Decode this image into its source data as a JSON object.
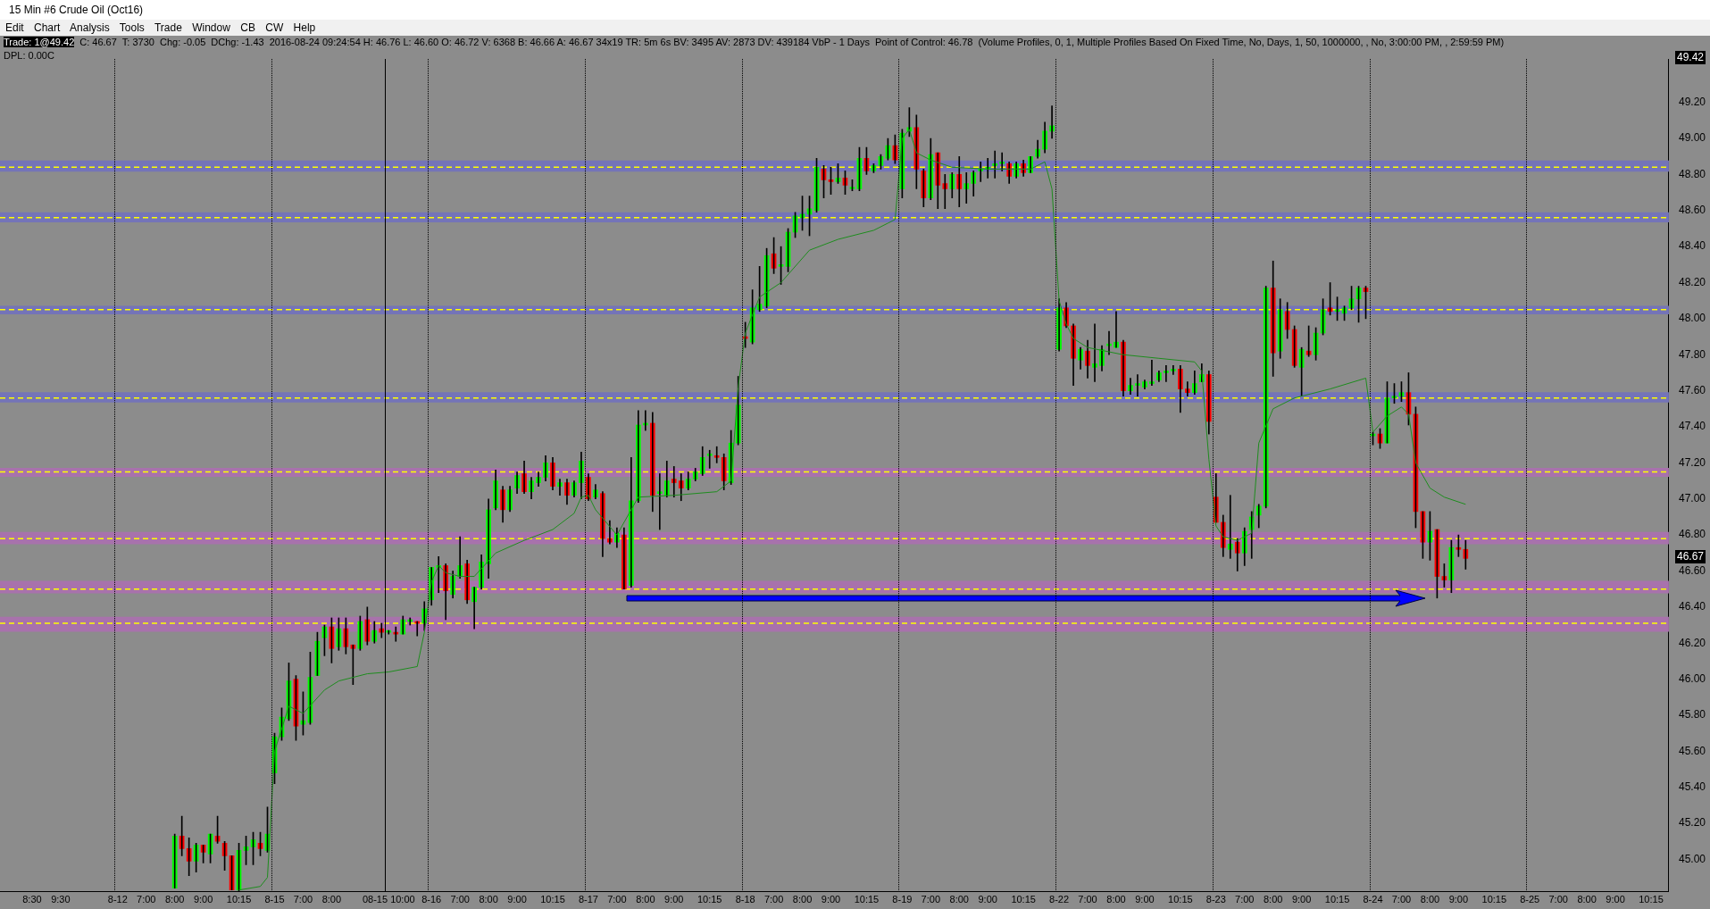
{
  "chart_data": {
    "type": "candlestick",
    "title": "15 Min #6 Crude Oil (Oct16)",
    "annotations": [
      "Edit Chart Analysis Tools Trade Window CB CW Help",
      "Trade: 1@49.42",
      "C: 46.67",
      "T: 3730",
      "Chg: -0.05",
      "DChg: -1.43",
      "2016-08-24 09:24:54 H: 46.76 L: 46.60 O: 46.72 V: 6368 B: 46.66 A: 46.67 34x19 TR: 5m 6s BV: 3495 AV: 2873 DV: 439184 VbP - 1 Days",
      "Point of Control: 46.78",
      "(Volume Profiles, 0, 1, Multiple Profiles Based On Fixed Time, No, Days, 1, 50, 1000000, , No, 3:00:00 PM, , 2:59:59 PM)",
      "DPL: 0.00C",
      "49.42",
      "46.67"
    ],
    "categories": [
      null,
      null,
      null,
      null,
      "8:30",
      null,
      null,
      null,
      "9:30",
      null,
      null,
      null,
      null,
      null,
      null,
      null,
      "8-12",
      null,
      null,
      null,
      "7:00",
      null,
      null,
      null,
      "8:00",
      null,
      null,
      null,
      "9:00",
      null,
      null,
      null,
      null,
      "10:15",
      null,
      null,
      null,
      null,
      "8-15",
      null,
      null,
      null,
      "7:00",
      null,
      null,
      null,
      "8:00",
      null,
      null,
      null,
      null,
      null,
      null,
      null,
      "08-15 10:00",
      null,
      null,
      null,
      null,
      null,
      "8-16",
      null,
      null,
      null,
      "7:00",
      null,
      null,
      null,
      "8:00",
      null,
      null,
      null,
      "9:00",
      null,
      null,
      null,
      null,
      "10:15",
      null,
      null,
      null,
      null,
      "8-17",
      null,
      null,
      null,
      "7:00",
      null,
      null,
      null,
      "8:00",
      null,
      null,
      null,
      "9:00",
      null,
      null,
      null,
      null,
      "10:15",
      null,
      null,
      null,
      null,
      "8-18",
      null,
      null,
      null,
      "7:00",
      null,
      null,
      null,
      "8:00",
      null,
      null,
      null,
      "9:00",
      null,
      null,
      null,
      null,
      "10:15",
      null,
      null,
      null,
      null,
      "8-19",
      null,
      null,
      null,
      "7:00",
      null,
      null,
      null,
      "8:00",
      null,
      null,
      null,
      "9:00",
      null,
      null,
      null,
      null,
      "10:15",
      null,
      null,
      null,
      null,
      "8-22",
      null,
      null,
      null,
      "7:00",
      null,
      null,
      null,
      "8:00",
      null,
      null,
      null,
      "9:00",
      null,
      null,
      null,
      null,
      "10:15",
      null,
      null,
      null,
      null,
      "8-23",
      null,
      null,
      null,
      "7:00",
      null,
      null,
      null,
      "8:00",
      null,
      null,
      null,
      "9:00",
      null,
      null,
      null,
      null,
      "10:15",
      null,
      null,
      null,
      null,
      "8-24",
      null,
      null,
      null,
      "7:00",
      null,
      null,
      null,
      "8:00",
      null,
      null,
      null,
      "9:00",
      null,
      null,
      null,
      null,
      "10:15",
      null,
      null,
      null,
      null,
      "8-25",
      null,
      null,
      null,
      "7:00",
      null,
      null,
      null,
      "8:00",
      null,
      null,
      null,
      "9:00",
      null,
      null,
      null,
      null,
      "10:15",
      null,
      null
    ],
    "series": [
      {
        "type": "candlestick",
        "ohlc": [
          null,
          null,
          null,
          null,
          null,
          null,
          null,
          null,
          null,
          null,
          null,
          null,
          null,
          null,
          null,
          null,
          null,
          null,
          null,
          null,
          null,
          null,
          null,
          null,
          [
            44.84,
            45.14,
            44.84,
            45.13
          ],
          [
            45.13,
            45.24,
            45.02,
            45.06
          ],
          [
            45.06,
            45.12,
            44.91,
            44.99
          ],
          [
            44.99,
            45.09,
            44.93,
            45.08
          ],
          [
            45.08,
            45.08,
            44.98,
            45.04
          ],
          [
            45.03,
            45.14,
            44.98,
            45.14
          ],
          [
            45.13,
            45.24,
            45.09,
            45.1
          ],
          [
            45.09,
            45.1,
            44.94,
            45.02
          ],
          [
            45.02,
            45.02,
            44.83,
            44.83
          ],
          [
            44.83,
            45.09,
            44.82,
            45.05
          ],
          [
            45.05,
            45.13,
            44.97,
            45.07
          ],
          [
            45.07,
            45.15,
            44.97,
            45.11
          ],
          [
            45.09,
            45.15,
            45.02,
            45.06
          ],
          [
            45.05,
            45.29,
            45.04,
            45.14
          ],
          [
            45.48,
            45.7,
            45.42,
            45.68
          ],
          [
            45.68,
            45.84,
            45.66,
            45.79
          ],
          [
            45.78,
            46.09,
            45.77,
            45.99
          ],
          [
            46.0,
            46.02,
            45.66,
            45.74
          ],
          [
            45.75,
            45.93,
            45.69,
            45.77
          ],
          [
            45.76,
            46.15,
            45.75,
            46.01
          ],
          [
            46.02,
            46.26,
            46.02,
            46.21
          ],
          [
            46.23,
            46.3,
            46.13,
            46.29
          ],
          [
            46.29,
            46.34,
            46.09,
            46.17
          ],
          [
            46.18,
            46.34,
            46.16,
            46.28
          ],
          [
            46.28,
            46.34,
            46.14,
            46.18
          ],
          [
            46.19,
            46.19,
            45.97,
            46.17
          ],
          [
            46.17,
            46.35,
            46.16,
            46.32
          ],
          [
            46.33,
            46.4,
            46.19,
            46.21
          ],
          [
            46.21,
            46.32,
            46.2,
            46.27
          ],
          [
            46.28,
            46.31,
            46.23,
            46.26
          ],
          [
            46.26,
            46.27,
            46.25,
            46.26
          ],
          [
            46.26,
            46.29,
            46.21,
            46.25
          ],
          [
            46.25,
            46.35,
            46.25,
            46.33
          ],
          [
            46.32,
            46.34,
            46.3,
            46.32
          ],
          [
            46.32,
            46.32,
            46.24,
            46.31
          ],
          [
            46.31,
            46.43,
            46.27,
            46.39
          ],
          [
            46.44,
            46.62,
            46.41,
            46.62
          ],
          [
            46.62,
            46.68,
            46.48,
            46.63
          ],
          [
            46.63,
            46.64,
            46.33,
            46.49
          ],
          [
            46.47,
            46.6,
            46.45,
            46.57
          ],
          [
            46.57,
            46.79,
            46.56,
            46.63
          ],
          [
            46.64,
            46.66,
            46.42,
            46.44
          ],
          [
            46.43,
            46.51,
            46.28,
            46.51
          ],
          [
            46.51,
            46.69,
            46.5,
            46.65
          ],
          [
            46.64,
            47.0,
            46.56,
            46.94
          ],
          [
            46.95,
            47.16,
            46.94,
            47.1
          ],
          [
            47.05,
            47.07,
            46.87,
            46.94
          ],
          [
            46.94,
            47.07,
            46.93,
            47.05
          ],
          [
            47.06,
            47.15,
            47.03,
            47.13
          ],
          [
            47.14,
            47.21,
            47.03,
            47.04
          ],
          [
            47.04,
            47.12,
            47.0,
            47.1
          ],
          [
            47.09,
            47.15,
            47.07,
            47.12
          ],
          [
            47.12,
            47.24,
            47.1,
            47.2
          ],
          [
            47.2,
            47.23,
            47.05,
            47.07
          ],
          [
            47.07,
            47.11,
            47.02,
            47.09
          ],
          [
            47.09,
            47.11,
            46.97,
            47.02
          ],
          [
            47.02,
            47.1,
            47.01,
            47.09
          ],
          [
            47.09,
            47.26,
            47.0,
            47.21
          ],
          [
            47.12,
            47.14,
            46.99,
            47.0
          ],
          [
            47.01,
            47.08,
            47.0,
            47.05
          ],
          [
            47.03,
            47.04,
            46.68,
            46.78
          ],
          [
            46.78,
            46.88,
            46.75,
            46.76
          ],
          [
            46.76,
            46.84,
            46.73,
            46.81
          ],
          [
            46.8,
            46.84,
            46.5,
            46.5
          ],
          [
            46.52,
            47.23,
            46.51,
            46.99
          ],
          [
            46.99,
            47.49,
            46.98,
            47.41
          ],
          [
            47.41,
            47.49,
            47.38,
            47.41
          ],
          [
            47.42,
            47.48,
            46.93,
            47.02
          ],
          [
            47.03,
            47.14,
            46.83,
            47.03
          ],
          [
            47.02,
            47.21,
            47.01,
            47.1
          ],
          [
            47.11,
            47.18,
            47.01,
            47.09
          ],
          [
            47.1,
            47.14,
            46.99,
            47.06
          ],
          [
            47.06,
            47.15,
            47.05,
            47.11
          ],
          [
            47.11,
            47.17,
            47.1,
            47.15
          ],
          [
            47.14,
            47.29,
            47.13,
            47.23
          ],
          [
            47.24,
            47.27,
            47.17,
            47.24
          ],
          [
            47.24,
            47.29,
            47.2,
            47.23
          ],
          [
            47.23,
            47.25,
            47.05,
            47.1
          ],
          [
            47.09,
            47.38,
            47.08,
            47.31
          ],
          [
            47.31,
            47.68,
            47.3,
            47.52
          ],
          [
            47.89,
            47.98,
            47.84,
            47.89
          ],
          [
            47.87,
            48.16,
            47.86,
            48.06
          ],
          [
            48.05,
            48.29,
            48.04,
            48.08
          ],
          [
            48.07,
            48.39,
            48.06,
            48.35
          ],
          [
            48.36,
            48.45,
            48.25,
            48.28
          ],
          [
            48.29,
            48.4,
            48.19,
            48.29
          ],
          [
            48.29,
            48.5,
            48.26,
            48.48
          ],
          [
            48.48,
            48.59,
            48.45,
            48.57
          ],
          [
            48.56,
            48.68,
            48.49,
            48.58
          ],
          [
            48.58,
            48.68,
            48.46,
            48.61
          ],
          [
            48.6,
            48.89,
            48.59,
            48.84
          ],
          [
            48.83,
            48.85,
            48.67,
            48.77
          ],
          [
            48.77,
            48.84,
            48.69,
            48.76
          ],
          [
            48.76,
            48.86,
            48.75,
            48.78
          ],
          [
            48.78,
            48.82,
            48.69,
            48.74
          ],
          [
            48.72,
            48.77,
            48.71,
            48.72
          ],
          [
            48.72,
            48.95,
            48.71,
            48.89
          ],
          [
            48.89,
            48.95,
            48.8,
            48.82
          ],
          [
            48.82,
            48.86,
            48.81,
            48.85
          ],
          [
            48.85,
            48.91,
            48.83,
            48.9
          ],
          [
            48.89,
            49.0,
            48.88,
            48.96
          ],
          [
            48.96,
            49.02,
            48.86,
            48.88
          ],
          [
            48.72,
            49.05,
            48.67,
            49.03
          ],
          [
            49.04,
            49.17,
            49.01,
            49.06
          ],
          [
            49.06,
            49.13,
            48.72,
            48.83
          ],
          [
            48.82,
            48.83,
            48.62,
            48.67
          ],
          [
            48.67,
            49.0,
            48.66,
            48.91
          ],
          [
            48.92,
            48.92,
            48.61,
            48.74
          ],
          [
            48.75,
            48.8,
            48.61,
            48.72
          ],
          [
            48.72,
            48.81,
            48.67,
            48.8
          ],
          [
            48.8,
            48.9,
            48.62,
            48.72
          ],
          [
            48.72,
            48.81,
            48.64,
            48.75
          ],
          [
            48.75,
            48.82,
            48.68,
            48.81
          ],
          [
            48.82,
            48.87,
            48.76,
            48.82
          ],
          [
            48.83,
            48.89,
            48.78,
            48.83
          ],
          [
            48.85,
            48.93,
            48.78,
            48.85
          ],
          [
            48.86,
            48.92,
            48.82,
            48.86
          ],
          [
            48.86,
            48.87,
            48.75,
            48.79
          ],
          [
            48.79,
            48.87,
            48.78,
            48.86
          ],
          [
            48.86,
            48.88,
            48.79,
            48.81
          ],
          [
            48.81,
            48.9,
            48.81,
            48.9
          ],
          [
            48.9,
            48.99,
            48.89,
            48.94
          ],
          [
            48.94,
            49.09,
            48.92,
            49.04
          ],
          [
            49.04,
            49.18,
            49.0,
            49.07
          ],
          [
            47.83,
            48.11,
            47.82,
            48.06
          ],
          [
            48.06,
            48.09,
            47.95,
            47.96
          ],
          [
            47.96,
            47.97,
            47.63,
            47.78
          ],
          [
            47.77,
            47.84,
            47.72,
            47.83
          ],
          [
            47.82,
            47.88,
            47.67,
            47.74
          ],
          [
            47.73,
            47.97,
            47.65,
            47.75
          ],
          [
            47.74,
            47.85,
            47.71,
            47.83
          ],
          [
            47.85,
            47.93,
            47.8,
            47.85
          ],
          [
            47.84,
            48.04,
            47.84,
            47.87
          ],
          [
            47.87,
            47.88,
            47.57,
            47.6
          ],
          [
            47.6,
            47.67,
            47.58,
            47.63
          ],
          [
            47.63,
            47.69,
            47.57,
            47.63
          ],
          [
            47.62,
            47.66,
            47.61,
            47.65
          ],
          [
            47.64,
            47.77,
            47.63,
            47.65
          ],
          [
            47.66,
            47.71,
            47.65,
            47.7
          ],
          [
            47.7,
            47.74,
            47.65,
            47.71
          ],
          [
            47.71,
            47.74,
            47.69,
            47.72
          ],
          [
            47.72,
            47.74,
            47.48,
            47.61
          ],
          [
            47.61,
            47.65,
            47.57,
            47.59
          ],
          [
            47.59,
            47.71,
            47.58,
            47.64
          ],
          [
            47.65,
            47.75,
            47.65,
            47.69
          ],
          [
            47.69,
            47.71,
            47.36,
            47.43
          ],
          [
            47.01,
            47.14,
            46.87,
            46.87
          ],
          [
            46.87,
            46.91,
            46.68,
            46.73
          ],
          [
            46.72,
            47.02,
            46.67,
            46.75
          ],
          [
            46.76,
            46.78,
            46.6,
            46.7
          ],
          [
            46.7,
            46.84,
            46.63,
            46.82
          ],
          [
            46.83,
            46.93,
            46.67,
            46.9
          ],
          [
            46.91,
            46.97,
            46.84,
            46.96
          ],
          [
            46.96,
            48.18,
            46.95,
            48.17
          ],
          [
            48.17,
            48.32,
            47.68,
            47.81
          ],
          [
            47.82,
            48.11,
            47.78,
            48.05
          ],
          [
            48.04,
            48.09,
            47.89,
            47.94
          ],
          [
            47.94,
            47.96,
            47.73,
            47.74
          ],
          [
            47.73,
            47.84,
            47.57,
            47.83
          ],
          [
            47.82,
            47.96,
            47.79,
            47.8
          ],
          [
            47.8,
            47.95,
            47.77,
            47.92
          ],
          [
            47.92,
            48.11,
            47.91,
            48.05
          ],
          [
            48.06,
            48.2,
            48.02,
            48.04
          ],
          [
            48.04,
            48.12,
            47.99,
            48.04
          ],
          [
            48.03,
            48.07,
            47.99,
            48.06
          ],
          [
            48.06,
            48.18,
            48.05,
            48.11
          ],
          [
            48.11,
            48.18,
            47.98,
            48.17
          ],
          [
            48.17,
            48.18,
            48.0,
            48.15
          ],
          [
            47.35,
            47.37,
            47.3,
            47.36
          ],
          [
            47.36,
            47.39,
            47.28,
            47.31
          ],
          [
            47.31,
            47.65,
            47.31,
            47.56
          ],
          [
            47.56,
            47.64,
            47.53,
            47.56
          ],
          [
            47.57,
            47.65,
            47.54,
            47.59
          ],
          [
            47.59,
            47.7,
            47.41,
            47.47
          ],
          [
            47.47,
            47.51,
            46.84,
            46.93
          ],
          [
            46.93,
            46.93,
            46.67,
            46.76
          ],
          [
            46.76,
            46.93,
            46.66,
            46.82
          ],
          [
            46.83,
            46.83,
            46.45,
            46.57
          ],
          [
            46.57,
            46.64,
            46.51,
            46.55
          ],
          [
            46.55,
            46.77,
            46.48,
            46.73
          ],
          [
            46.73,
            46.8,
            46.68,
            46.72
          ],
          [
            46.72,
            46.77,
            46.61,
            46.67
          ],
          null,
          null,
          null,
          null,
          null,
          null,
          null,
          null,
          null,
          null,
          null,
          null,
          null,
          null,
          null,
          null,
          null,
          null,
          null,
          null,
          null,
          null,
          null,
          null,
          null,
          null,
          null,
          null
        ],
        "colors": [
          null,
          null,
          null,
          null,
          null,
          null,
          null,
          null,
          null,
          null,
          null,
          null,
          null,
          null,
          null,
          null,
          null,
          null,
          null,
          null,
          null,
          null,
          null,
          null,
          "#00ff00",
          "#ff0000",
          "#ff0000",
          "#00ff00",
          "#ff0000",
          "#00ff00",
          "#ff0000",
          "#ff0000",
          "#ff0000",
          "#00ff00",
          "#00ff00",
          "#00ff00",
          "#ff0000",
          "#00ff00",
          "#00ff00",
          "#00ff00",
          "#00ff00",
          "#ff0000",
          "#00ff00",
          "#00ff00",
          "#00ff00",
          "#00ff00",
          "#ff0000",
          "#00ff00",
          "#ff0000",
          "#ff0000",
          "#00ff00",
          "#ff0000",
          "#00ff00",
          "#ff0000",
          "#00ff00",
          "#ff0000",
          "#00ff00",
          "#00ff00",
          "#ff0000",
          "#00ff00",
          "#00ff00",
          "#00ff00",
          "#ff0000",
          "#00ff00",
          "#00ff00",
          "#ff0000",
          "#00ff00",
          "#00ff00",
          "#00ff00",
          "#00ff00",
          "#ff0000",
          "#00ff00",
          "#00ff00",
          "#ff0000",
          "#00ff00",
          "#00ff00",
          "#00ff00",
          "#ff0000",
          "#00ff00",
          "#ff0000",
          "#00ff00",
          "#00ff00",
          "#ff0000",
          "#00ff00",
          "#ff0000",
          "#ff0000",
          "#00ff00",
          "#ff0000",
          "#00ff00",
          "#00ff00",
          "#00ff00",
          "#ff0000",
          "#00ff00",
          "#00ff00",
          "#ff0000",
          "#ff0000",
          "#00ff00",
          "#00ff00",
          "#00ff00",
          "#00ff00",
          "#ff0000",
          "#ff0000",
          "#00ff00",
          "#00ff00",
          "#ff0000",
          "#00ff00",
          "#00ff00",
          "#00ff00",
          "#ff0000",
          "#00ff00",
          "#00ff00",
          "#00ff00",
          "#00ff00",
          "#00ff00",
          "#00ff00",
          "#ff0000",
          "#ff0000",
          "#00ff00",
          "#ff0000",
          "#00ff00",
          "#00ff00",
          "#ff0000",
          "#00ff00",
          "#00ff00",
          "#00ff00",
          "#ff0000",
          "#00ff00",
          "#00ff00",
          "#ff0000",
          "#ff0000",
          "#00ff00",
          "#ff0000",
          "#ff0000",
          "#00ff00",
          "#ff0000",
          "#00ff00",
          "#00ff00",
          "#00ff00",
          "#00ff00",
          "#00ff00",
          "#00ff00",
          "#ff0000",
          "#00ff00",
          "#ff0000",
          "#00ff00",
          "#00ff00",
          "#00ff00",
          "#00ff00",
          "#00ff00",
          "#ff0000",
          "#ff0000",
          "#00ff00",
          "#ff0000",
          "#00ff00",
          "#00ff00",
          "#00ff00",
          "#00ff00",
          "#ff0000",
          "#00ff00",
          "#00ff00",
          "#00ff00",
          "#00ff00",
          "#00ff00",
          "#00ff00",
          "#00ff00",
          "#ff0000",
          "#ff0000",
          "#00ff00",
          "#00ff00",
          "#ff0000",
          "#ff0000",
          "#ff0000",
          "#00ff00",
          "#ff0000",
          "#00ff00",
          "#00ff00",
          "#00ff00",
          "#00ff00",
          "#ff0000",
          "#00ff00",
          "#ff0000",
          "#ff0000",
          "#00ff00",
          "#ff0000",
          "#00ff00",
          "#00ff00",
          "#ff0000",
          "#00ff00",
          "#00ff00",
          "#00ff00",
          "#00ff00",
          "#ff0000",
          "#00ff00",
          "#ff0000",
          "#00ff00",
          "#00ff00",
          "#00ff00",
          "#ff0000",
          "#ff0000",
          "#ff0000",
          "#00ff00",
          "#ff0000",
          "#ff0000",
          "#00ff00",
          "#ff0000",
          "#ff0000",
          null,
          null,
          null,
          null,
          null,
          null,
          null,
          null,
          null,
          null,
          null,
          null,
          null,
          null,
          null,
          null,
          null,
          null,
          null,
          null,
          null,
          null,
          null,
          null,
          null,
          null,
          null,
          null
        ]
      },
      {
        "type": "line",
        "color": "#1e8c1e",
        "values": [
          null,
          null,
          null,
          null,
          null,
          null,
          null,
          null,
          null,
          null,
          null,
          null,
          null,
          null,
          null,
          null,
          null,
          null,
          null,
          null,
          null,
          null,
          null,
          null,
          null,
          null,
          null,
          null,
          null,
          null,
          null,
          null,
          null,
          44.83,
          null,
          null,
          44.85,
          44.9,
          45.6,
          null,
          45.85,
          null,
          45.81,
          null,
          null,
          45.94,
          null,
          45.99,
          null,
          null,
          null,
          46.03,
          null,
          null,
          46.04,
          null,
          null,
          null,
          46.07,
          46.26,
          46.54,
          46.63,
          46.59,
          null,
          46.57,
          null,
          46.57,
          null,
          null,
          46.7,
          null,
          null,
          null,
          46.77,
          null,
          null,
          null,
          46.83,
          null,
          null,
          46.92,
          47.01,
          47.02,
          46.94,
          null,
          null,
          46.8,
          null,
          null,
          47.01,
          null,
          null,
          null,
          null,
          47.02,
          null,
          null,
          null,
          null,
          null,
          47.04,
          null,
          47.1,
          47.62,
          47.92,
          null,
          48.12,
          null,
          null,
          48.2,
          null,
          null,
          null,
          48.38,
          null,
          null,
          null,
          48.44,
          null,
          null,
          null,
          null,
          48.49,
          null,
          48.53,
          48.55,
          49.0,
          49.05,
          48.92,
          null,
          48.88,
          null,
          null,
          48.84,
          null,
          null,
          null,
          null,
          48.83,
          null,
          null,
          null,
          null,
          null,
          48.83,
          null,
          48.87,
          48.72,
          48.1,
          47.97,
          47.89,
          null,
          47.84,
          null,
          null,
          null,
          null,
          47.8,
          null,
          null,
          null,
          null,
          47.78,
          null,
          null,
          null,
          null,
          47.76,
          47.71,
          47.22,
          46.85,
          46.79,
          null,
          46.77,
          null,
          46.81,
          47.31,
          null,
          47.5,
          null,
          null,
          47.56,
          null,
          null,
          null,
          null,
          47.61,
          null,
          null,
          null,
          null,
          47.67,
          47.37,
          null,
          47.46,
          null,
          47.51,
          47.47,
          47.2,
          null,
          47.06,
          null,
          47.01,
          null,
          null,
          46.97,
          null,
          null,
          null,
          null,
          null,
          null,
          null,
          null,
          null,
          null,
          null,
          null,
          null,
          null,
          null,
          null,
          null,
          null,
          null,
          null,
          null,
          null,
          null,
          null,
          null,
          null,
          null,
          null
        ]
      }
    ],
    "ylim": [
      44.82,
      49.44
    ],
    "yticks": [
      {
        "value": 45,
        "label": "45.00"
      },
      {
        "value": 45.2,
        "label": "45.20"
      },
      {
        "value": 45.4,
        "label": "45.40"
      },
      {
        "value": 45.6,
        "label": "45.60"
      },
      {
        "value": 45.8,
        "label": "45.80"
      },
      {
        "value": 46,
        "label": "46.00"
      },
      {
        "value": 46.2,
        "label": "46.20"
      },
      {
        "value": 46.4,
        "label": "46.40"
      },
      {
        "value": 46.6,
        "label": "46.60"
      },
      {
        "value": 46.8,
        "label": "46.80"
      },
      {
        "value": 47,
        "label": "47.00"
      },
      {
        "value": 47.2,
        "label": "47.20"
      },
      {
        "value": 47.4,
        "label": "47.40"
      },
      {
        "value": 47.6,
        "label": "47.60"
      },
      {
        "value": 47.8,
        "label": "47.80"
      },
      {
        "value": 48,
        "label": "48.00"
      },
      {
        "value": 48.2,
        "label": "48.20"
      },
      {
        "value": 48.4,
        "label": "48.40"
      },
      {
        "value": 48.6,
        "label": "48.60"
      },
      {
        "value": 48.8,
        "label": "48.80"
      },
      {
        "value": 49,
        "label": "49.00"
      },
      {
        "value": 49.2,
        "label": "49.20"
      }
    ],
    "bands": [
      {
        "axis": "y",
        "from": 48.815,
        "to": 48.878,
        "color": "#7474b8"
      },
      {
        "axis": "y",
        "from": 48.534,
        "to": 48.59,
        "color": "#7474b8"
      },
      {
        "axis": "y",
        "from": 48.024,
        "to": 48.071,
        "color": "#7474b8"
      },
      {
        "axis": "y",
        "from": 47.535,
        "to": 47.592,
        "color": "#7474b8"
      },
      {
        "axis": "y",
        "from": 47.123,
        "to": 47.172,
        "color": "#a872ac"
      },
      {
        "axis": "y",
        "from": 46.748,
        "to": 46.817,
        "color": "#a872ac"
      },
      {
        "axis": "y",
        "from": 46.476,
        "to": 46.545,
        "color": "#a872ac"
      },
      {
        "axis": "y",
        "from": 46.263,
        "to": 46.346,
        "color": "#a872ac"
      }
    ],
    "ref_lines": [
      {
        "axis": "y",
        "value": 48.84,
        "color": "#ffff00",
        "line_style": "dashed"
      },
      {
        "axis": "y",
        "value": 48.56,
        "color": "#ffff00",
        "line_style": "dashed"
      },
      {
        "axis": "y",
        "value": 48.05,
        "color": "#ffff00",
        "line_style": "dashed"
      },
      {
        "axis": "y",
        "value": 47.56,
        "color": "#ffff00",
        "line_style": "dashed"
      },
      {
        "axis": "y",
        "value": 47.15,
        "color": "#ffff00",
        "line_style": "dashed"
      },
      {
        "axis": "y",
        "value": 46.78,
        "color": "#ffff00",
        "line_style": "dashed"
      },
      {
        "axis": "y",
        "value": 46.5,
        "color": "#ffff00",
        "line_style": "dashed"
      },
      {
        "axis": "y",
        "value": 46.31,
        "color": "#ffff00",
        "line_style": "dashed"
      }
    ],
    "grid": false,
    "legend": false,
    "marker": "none"
  }
}
